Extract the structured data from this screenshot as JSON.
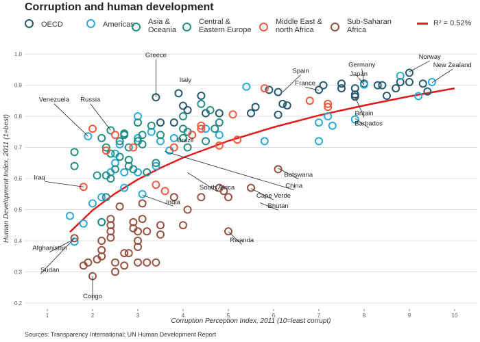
{
  "title": "Corruption and human development",
  "source": "Sources: Transparency International; UN Human Development Report",
  "legend": {
    "regions": [
      {
        "label": "OECD",
        "color": "#24576D"
      },
      {
        "label": "Americas",
        "color": "#28AADC"
      },
      {
        "label": "Asia &\nOceania",
        "color": "#248E84"
      },
      {
        "label": "Central &\nEastern Europe",
        "color": "#248E84"
      },
      {
        "label": "Middle East &\nnorth Africa",
        "color": "#F2583F"
      },
      {
        "label": "Sub-Saharan\nAfrica",
        "color": "#96503F"
      }
    ],
    "fit_label": "R² = 0.52%",
    "fit_color": "#E31A1C"
  },
  "chart_data": {
    "type": "scatter",
    "xlabel": "Corruption Perception Index, 2011 (10=least corrupt)",
    "ylabel": "Human Development Index, 2011 (1=best)",
    "xlim": [
      0.5,
      10.5
    ],
    "ylim": [
      0.18,
      1.02
    ],
    "xticks": [
      1,
      2,
      3,
      4,
      5,
      6,
      7,
      8,
      9,
      10
    ],
    "yticks": [
      0.2,
      0.3,
      0.4,
      0.5,
      0.6,
      0.7,
      0.8,
      0.9,
      1.0
    ],
    "grid": true,
    "colors": {
      "OECD": "#24576D",
      "Americas": "#28AADC",
      "Asia & Oceania": "#248E84",
      "Central & Eastern Europe": "#248E84",
      "Middle East & north Africa": "#F2583F",
      "Sub-Saharan Africa": "#96503F"
    },
    "series": [
      {
        "name": "OECD",
        "points": [
          [
            3.4,
            0.861
          ],
          [
            3.9,
            0.874
          ],
          [
            3.5,
            0.78
          ],
          [
            3.8,
            0.78
          ],
          [
            4.0,
            0.834
          ],
          [
            4.1,
            0.82
          ],
          [
            4.4,
            0.866
          ],
          [
            4.5,
            0.81
          ],
          [
            4.8,
            0.81
          ],
          [
            5.5,
            0.81
          ],
          [
            5.6,
            0.83
          ],
          [
            5.9,
            0.885
          ],
          [
            6.1,
            0.878
          ],
          [
            6.1,
            0.805
          ],
          [
            6.2,
            0.84
          ],
          [
            6.3,
            0.835
          ],
          [
            7.0,
            0.885
          ],
          [
            7.1,
            0.9
          ],
          [
            7.5,
            0.89
          ],
          [
            7.5,
            0.905
          ],
          [
            7.8,
            0.87
          ],
          [
            7.8,
            0.89
          ],
          [
            7.8,
            0.863
          ],
          [
            8.0,
            0.905
          ],
          [
            8.3,
            0.9
          ],
          [
            8.4,
            0.9
          ],
          [
            8.5,
            0.866
          ],
          [
            8.7,
            0.89
          ],
          [
            8.8,
            0.91
          ],
          [
            9.0,
            0.91
          ],
          [
            9.0,
            0.94
          ],
          [
            9.3,
            0.905
          ],
          [
            9.4,
            0.88
          ]
        ]
      },
      {
        "name": "Americas",
        "points": [
          [
            1.5,
            0.48
          ],
          [
            1.6,
            0.397
          ],
          [
            1.8,
            0.455
          ],
          [
            1.9,
            0.736
          ],
          [
            2.0,
            0.52
          ],
          [
            2.2,
            0.54
          ],
          [
            2.2,
            0.46
          ],
          [
            2.4,
            0.62
          ],
          [
            2.5,
            0.65
          ],
          [
            2.5,
            0.68
          ],
          [
            2.6,
            0.71
          ],
          [
            2.7,
            0.57
          ],
          [
            2.7,
            0.62
          ],
          [
            2.8,
            0.66
          ],
          [
            3.0,
            0.8
          ],
          [
            3.0,
            0.73
          ],
          [
            3.0,
            0.62
          ],
          [
            3.1,
            0.55
          ],
          [
            3.3,
            0.75
          ],
          [
            3.4,
            0.64
          ],
          [
            3.5,
            0.72
          ],
          [
            3.7,
            0.69
          ],
          [
            3.8,
            0.73
          ],
          [
            4.2,
            0.74
          ],
          [
            4.5,
            0.76
          ],
          [
            4.8,
            0.74
          ],
          [
            5.4,
            0.895
          ],
          [
            5.8,
            0.72
          ],
          [
            7.0,
            0.78
          ],
          [
            7.0,
            0.72
          ],
          [
            7.2,
            0.8
          ],
          [
            7.3,
            0.77
          ],
          [
            7.8,
            0.79
          ],
          [
            8.0,
            0.902
          ],
          [
            8.8,
            0.93
          ],
          [
            9.2,
            0.865
          ],
          [
            9.5,
            0.91
          ]
        ]
      },
      {
        "name": "Asia & Oceania",
        "points": [
          [
            1.6,
            0.64
          ],
          [
            1.6,
            0.685
          ],
          [
            2.1,
            0.61
          ],
          [
            2.2,
            0.46
          ],
          [
            2.3,
            0.61
          ],
          [
            2.3,
            0.54
          ],
          [
            2.4,
            0.6
          ],
          [
            2.4,
            0.68
          ],
          [
            2.6,
            0.67
          ],
          [
            2.6,
            0.72
          ],
          [
            2.7,
            0.74
          ],
          [
            2.8,
            0.66
          ],
          [
            2.9,
            0.63
          ],
          [
            3.0,
            0.72
          ],
          [
            3.1,
            0.74
          ],
          [
            3.2,
            0.62
          ],
          [
            3.4,
            0.65
          ],
          [
            4.0,
            0.8
          ],
          [
            4.0,
            0.76
          ],
          [
            4.1,
            0.75
          ],
          [
            4.5,
            0.72
          ],
          [
            4.8,
            0.78
          ]
        ]
      },
      {
        "name": "Central & Eastern Europe",
        "points": [
          [
            2.2,
            0.73
          ],
          [
            2.3,
            0.7
          ],
          [
            2.4,
            0.755
          ],
          [
            2.5,
            0.63
          ],
          [
            2.7,
            0.745
          ],
          [
            2.8,
            0.7
          ],
          [
            2.8,
            0.64
          ],
          [
            3.0,
            0.78
          ],
          [
            3.1,
            0.71
          ],
          [
            3.3,
            0.77
          ],
          [
            3.5,
            0.74
          ],
          [
            4.0,
            0.73
          ],
          [
            4.1,
            0.7
          ],
          [
            4.4,
            0.84
          ],
          [
            4.6,
            0.82
          ],
          [
            4.7,
            0.76
          ]
        ]
      },
      {
        "name": "Middle East & north Africa",
        "points": [
          [
            1.8,
            0.573
          ],
          [
            2.0,
            0.76
          ],
          [
            2.3,
            0.69
          ],
          [
            2.5,
            0.74
          ],
          [
            2.9,
            0.7
          ],
          [
            3.4,
            0.58
          ],
          [
            3.6,
            0.56
          ],
          [
            3.8,
            0.7
          ],
          [
            4.2,
            0.74
          ],
          [
            4.4,
            0.77
          ],
          [
            4.4,
            0.76
          ],
          [
            4.8,
            0.706
          ],
          [
            5.1,
            0.806
          ],
          [
            5.2,
            0.725
          ],
          [
            5.8,
            0.89
          ],
          [
            6.8,
            0.85
          ],
          [
            7.2,
            0.84
          ],
          [
            7.2,
            0.83
          ]
        ]
      },
      {
        "name": "Sub-Saharan Africa",
        "points": [
          [
            1.6,
            0.408
          ],
          [
            1.8,
            0.32
          ],
          [
            1.9,
            0.33
          ],
          [
            2.0,
            0.286
          ],
          [
            2.1,
            0.34
          ],
          [
            2.2,
            0.4
          ],
          [
            2.2,
            0.37
          ],
          [
            2.2,
            0.35
          ],
          [
            2.4,
            0.47
          ],
          [
            2.4,
            0.45
          ],
          [
            2.4,
            0.43
          ],
          [
            2.4,
            0.41
          ],
          [
            2.5,
            0.3
          ],
          [
            2.5,
            0.33
          ],
          [
            2.6,
            0.51
          ],
          [
            2.7,
            0.36
          ],
          [
            2.7,
            0.32
          ],
          [
            2.8,
            0.36
          ],
          [
            2.9,
            0.46
          ],
          [
            2.9,
            0.44
          ],
          [
            3.0,
            0.43
          ],
          [
            3.0,
            0.4
          ],
          [
            3.0,
            0.38
          ],
          [
            3.0,
            0.33
          ],
          [
            3.1,
            0.52
          ],
          [
            3.1,
            0.47
          ],
          [
            3.2,
            0.43
          ],
          [
            3.2,
            0.33
          ],
          [
            3.4,
            0.33
          ],
          [
            3.5,
            0.45
          ],
          [
            3.5,
            0.42
          ],
          [
            3.8,
            0.54
          ],
          [
            4.0,
            0.45
          ],
          [
            4.1,
            0.5
          ],
          [
            4.4,
            0.54
          ],
          [
            4.8,
            0.57
          ],
          [
            4.9,
            0.56
          ],
          [
            5.0,
            0.54
          ],
          [
            5.0,
            0.43
          ],
          [
            5.5,
            0.57
          ],
          [
            6.1,
            0.63
          ]
        ]
      }
    ],
    "fit": {
      "label": "R² = 0.52%",
      "color": "#E31A1C",
      "x_from": 1.5,
      "x_to": 10.0,
      "points": [
        [
          1.5,
          0.428
        ],
        [
          2.0,
          0.498
        ],
        [
          2.5,
          0.552
        ],
        [
          3.0,
          0.597
        ],
        [
          3.5,
          0.634
        ],
        [
          4.0,
          0.667
        ],
        [
          5.0,
          0.721
        ],
        [
          6.0,
          0.765
        ],
        [
          7.0,
          0.803
        ],
        [
          8.0,
          0.835
        ],
        [
          9.0,
          0.864
        ],
        [
          10.0,
          0.89
        ]
      ]
    },
    "annotations": [
      {
        "label": "Greece",
        "x": 3.4,
        "y": 0.861,
        "tx": 3.4,
        "ty": 0.99,
        "anchor": "middle"
      },
      {
        "label": "Italy",
        "x": 3.9,
        "y": 0.874,
        "tx": 4.05,
        "ty": 0.91,
        "anchor": "middle",
        "noline": true
      },
      {
        "label": "Venezuela",
        "x": 1.9,
        "y": 0.736,
        "tx": 1.15,
        "ty": 0.847,
        "anchor": "middle"
      },
      {
        "label": "Russia",
        "x": 2.4,
        "y": 0.755,
        "tx": 1.95,
        "ty": 0.847,
        "anchor": "middle"
      },
      {
        "label": "Iraq",
        "x": 1.8,
        "y": 0.573,
        "tx": 0.95,
        "ty": 0.597,
        "anchor": "end"
      },
      {
        "label": "Afghanistan",
        "x": 1.5,
        "y": 0.398,
        "tx": 1.05,
        "ty": 0.37,
        "anchor": "middle"
      },
      {
        "label": "Sudan",
        "x": 1.6,
        "y": 0.408,
        "tx": 0.85,
        "ty": 0.3,
        "anchor": "start"
      },
      {
        "label": "Congo",
        "x": 2.0,
        "y": 0.286,
        "tx": 2.0,
        "ty": 0.215,
        "anchor": "middle"
      },
      {
        "label": "Brazil",
        "x": 3.8,
        "y": 0.72,
        "tx": 4.05,
        "ty": 0.717,
        "anchor": "middle",
        "noline": true
      },
      {
        "label": "India",
        "x": 3.1,
        "y": 0.547,
        "tx": 3.78,
        "ty": 0.518,
        "anchor": "middle"
      },
      {
        "label": "South Africa",
        "x": 4.1,
        "y": 0.619,
        "tx": 4.75,
        "ty": 0.565,
        "anchor": "middle"
      },
      {
        "label": "China",
        "x": 3.6,
        "y": 0.687,
        "tx": 6.45,
        "ty": 0.57,
        "anchor": "middle"
      },
      {
        "label": "Botswana",
        "x": 6.1,
        "y": 0.633,
        "tx": 6.55,
        "ty": 0.605,
        "anchor": "middle"
      },
      {
        "label": "Cape Verde",
        "x": 5.5,
        "y": 0.568,
        "tx": 6.0,
        "ty": 0.538,
        "anchor": "middle"
      },
      {
        "label": "Bhutan",
        "x": 5.7,
        "y": 0.522,
        "tx": 6.1,
        "ty": 0.505,
        "anchor": "middle"
      },
      {
        "label": "Rwanda",
        "x": 5.0,
        "y": 0.429,
        "tx": 5.3,
        "ty": 0.395,
        "anchor": "middle"
      },
      {
        "label": "Spain",
        "x": 6.2,
        "y": 0.878,
        "tx": 6.6,
        "ty": 0.94,
        "anchor": "middle"
      },
      {
        "label": "France",
        "x": 7.0,
        "y": 0.884,
        "tx": 6.7,
        "ty": 0.9,
        "anchor": "middle"
      },
      {
        "label": "Germany",
        "x": 8.0,
        "y": 0.905,
        "tx": 7.95,
        "ty": 0.96,
        "anchor": "middle"
      },
      {
        "label": "Japan",
        "x": 8.0,
        "y": 0.901,
        "tx": 7.88,
        "ty": 0.93,
        "anchor": "middle"
      },
      {
        "label": "Norway",
        "x": 9.0,
        "y": 0.943,
        "tx": 9.45,
        "ty": 0.985,
        "anchor": "middle"
      },
      {
        "label": "New Zealand",
        "x": 9.5,
        "y": 0.908,
        "tx": 9.95,
        "ty": 0.958,
        "anchor": "middle"
      },
      {
        "label": "Britain",
        "x": 7.8,
        "y": 0.863,
        "tx": 8.0,
        "ty": 0.803,
        "anchor": "middle"
      },
      {
        "label": "Barbados",
        "x": 7.8,
        "y": 0.793,
        "tx": 8.1,
        "ty": 0.77,
        "anchor": "middle"
      }
    ]
  }
}
